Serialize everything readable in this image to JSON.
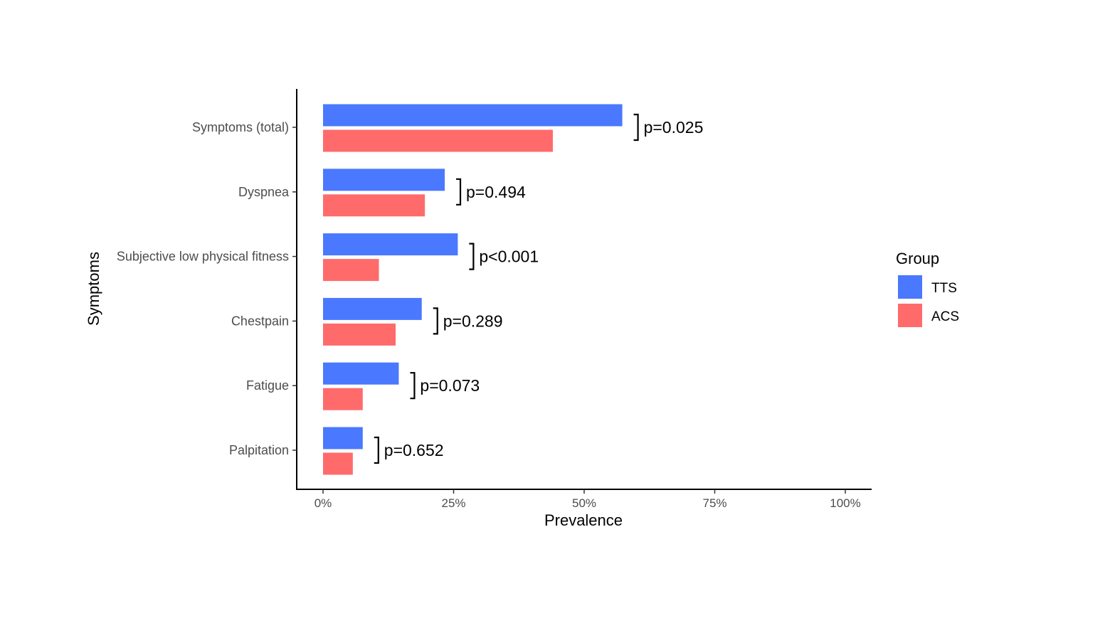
{
  "chart_data": {
    "type": "bar",
    "orientation": "horizontal",
    "categories": [
      "Symptoms (total)",
      "Dyspnea",
      "Subjective low physical fitness",
      "Chestpain",
      "Fatigue",
      "Palpitation"
    ],
    "series": [
      {
        "name": "TTS",
        "color": "#4a78ff",
        "values": [
          57.3,
          23.3,
          25.8,
          18.9,
          14.5,
          7.6
        ]
      },
      {
        "name": "ACS",
        "color": "#ff6b6b",
        "values": [
          44.0,
          19.5,
          10.7,
          13.9,
          7.6,
          5.7
        ]
      }
    ],
    "p_values": [
      "p=0.025",
      "p=0.494",
      "p<0.001",
      "p=0.289",
      "p=0.073",
      "p=0.652"
    ],
    "xlabel": "Prevalence",
    "ylabel": "Symptoms",
    "xlim": [
      0,
      100
    ],
    "x_ticks": [
      0,
      25,
      50,
      75,
      100
    ],
    "x_tick_labels": [
      "0%",
      "25%",
      "50%",
      "75%",
      "100%"
    ],
    "legend": {
      "title": "Group",
      "position": "right"
    },
    "grid": false
  }
}
